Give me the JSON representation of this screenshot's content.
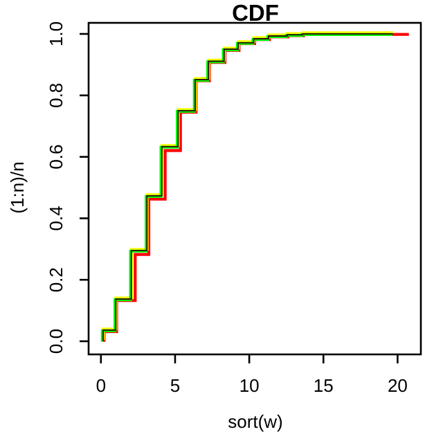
{
  "chart_data": {
    "type": "line",
    "subtype": "step-ecdf",
    "title": "CDF",
    "xlabel": "sort(w)",
    "ylabel": "(1:n)/n",
    "grid": false,
    "legend": "none",
    "background": "#ffffff",
    "axis_color": "#000000",
    "xlim": [
      0,
      20
    ],
    "ylim": [
      0.0,
      1.0
    ],
    "x_ticks": [
      {
        "label": "0",
        "value": 0
      },
      {
        "label": "5",
        "value": 5
      },
      {
        "label": "10",
        "value": 10
      },
      {
        "label": "15",
        "value": 15
      },
      {
        "label": "20",
        "value": 20
      }
    ],
    "y_ticks": [
      {
        "label": "0.0",
        "value": 0.0
      },
      {
        "label": "0.2",
        "value": 0.2
      },
      {
        "label": "0.4",
        "value": 0.4
      },
      {
        "label": "0.6",
        "value": 0.6
      },
      {
        "label": "0.8",
        "value": 0.8
      },
      {
        "label": "1.0",
        "value": 1.0
      }
    ],
    "series": [
      {
        "name": "red-ecdf",
        "color": "#ff0000",
        "y_start": 0.0,
        "jump_x": [
          0.15,
          1.0,
          2.25,
          3.17,
          4.27,
          5.3,
          6.35,
          7.25,
          8.3,
          9.25,
          10.3,
          11.3,
          12.55,
          13.6
        ],
        "levels": [
          0.033,
          0.134,
          0.284,
          0.464,
          0.622,
          0.747,
          0.849,
          0.909,
          0.948,
          0.97,
          0.983,
          0.992,
          0.996,
          1.0
        ],
        "x_end": 20.7
      },
      {
        "name": "yellow-ecdf",
        "color": "#ffff00",
        "y_start": 0.0,
        "jump_x": [
          0.15,
          1.0,
          2.05,
          3.1,
          4.1,
          5.2,
          6.35,
          7.25,
          8.3,
          9.25,
          10.3,
          11.3,
          12.55,
          13.6
        ],
        "levels": [
          0.036,
          0.137,
          0.295,
          0.473,
          0.633,
          0.75,
          0.851,
          0.911,
          0.95,
          0.971,
          0.984,
          0.993,
          0.997,
          1.0
        ],
        "x_end": 19.7
      },
      {
        "name": "green-ecdf",
        "color": "#00ff00",
        "y_start": 0.0,
        "jump_x": [
          0.15,
          1.0,
          2.05,
          3.1,
          4.1,
          5.2,
          6.35,
          7.25,
          8.3,
          9.25,
          10.3,
          11.3,
          12.55,
          13.6
        ],
        "levels": [
          0.036,
          0.137,
          0.295,
          0.473,
          0.633,
          0.75,
          0.851,
          0.911,
          0.95,
          0.971,
          0.984,
          0.993,
          0.997,
          1.0
        ],
        "x_end": 19.7
      },
      {
        "name": "overlap-core",
        "color": "#301003",
        "y_start": 0.0,
        "jump_x": [
          0.15,
          1.0,
          2.05,
          3.1,
          4.1,
          5.2,
          6.35,
          7.25,
          8.3,
          9.25,
          10.3,
          11.3,
          12.55,
          13.6
        ],
        "levels": [
          0.036,
          0.137,
          0.295,
          0.473,
          0.633,
          0.75,
          0.851,
          0.911,
          0.95,
          0.971,
          0.984,
          0.993,
          0.997,
          1.0
        ],
        "x_end": 19.7
      }
    ]
  }
}
